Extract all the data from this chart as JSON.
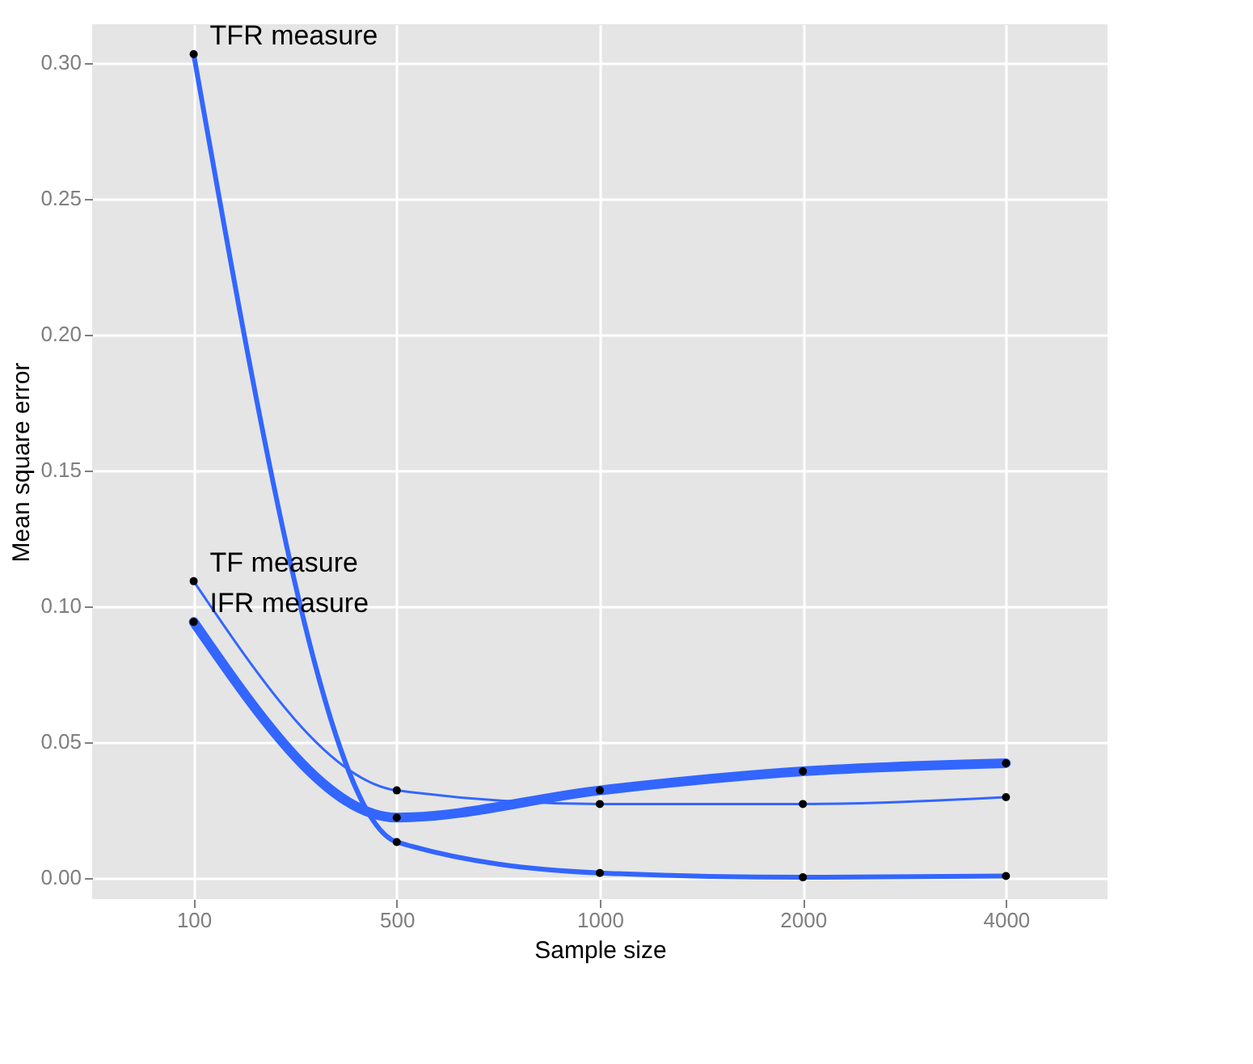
{
  "chart_data": {
    "type": "line",
    "xlabel": "Sample size",
    "ylabel": "Mean square error",
    "categories": [
      "100",
      "500",
      "1000",
      "2000",
      "4000"
    ],
    "series": [
      {
        "name": "TFR measure",
        "color": "#3366ff",
        "values": [
          0.303,
          0.013,
          0.0016,
          0.0,
          0.0005
        ]
      },
      {
        "name": "TF measure",
        "color": "#3366ff",
        "values": [
          0.109,
          0.032,
          0.027,
          0.027,
          0.0295
        ]
      },
      {
        "name": "IFR measure",
        "color": "#3366ff",
        "values": [
          0.094,
          0.022,
          0.032,
          0.039,
          0.042
        ]
      }
    ],
    "ylim": [
      -0.008,
      0.314
    ],
    "yticks": [
      {
        "value": 0,
        "label": "0.00"
      },
      0.05,
      {
        "value": 0.1,
        "label": "0.10"
      },
      0.15,
      {
        "value": 0.2,
        "label": "0.20"
      },
      0.25,
      {
        "value": 0.3,
        "label": "0.30"
      }
    ],
    "grid": true,
    "legend": false,
    "marker": "circle",
    "line_style": "solid"
  }
}
